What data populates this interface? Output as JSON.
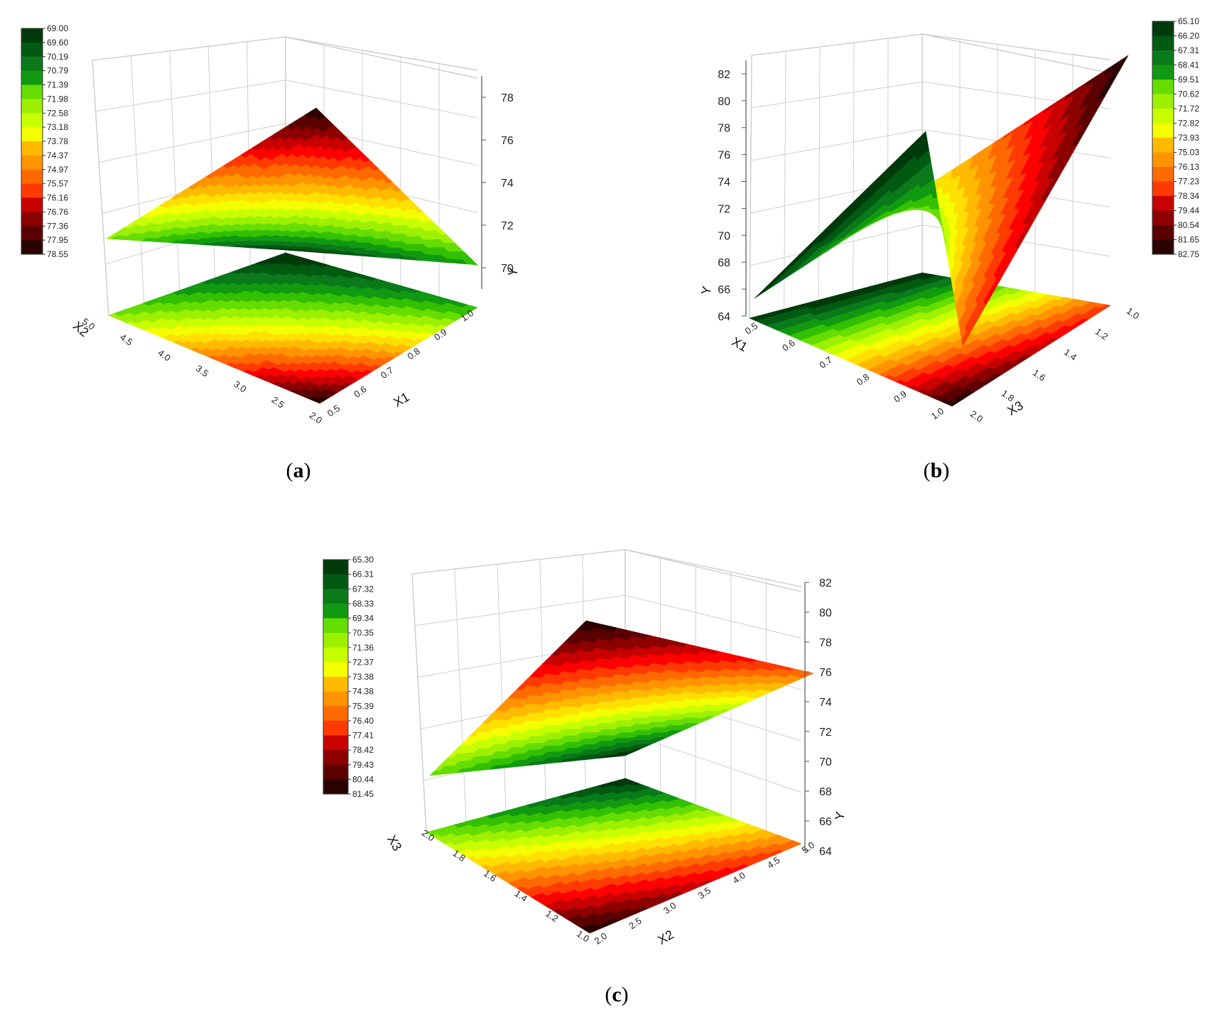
{
  "colors": {
    "ramp": [
      "#2b0000",
      "#5a0000",
      "#8c0000",
      "#c80000",
      "#ff0000",
      "#ff3a00",
      "#ff6a00",
      "#ff9400",
      "#ffba00",
      "#ffe000",
      "#f4ff00",
      "#c8ff00",
      "#9cf000",
      "#66dd00",
      "#33c000",
      "#119a11",
      "#0a7a1a",
      "#005a12",
      "#003a0a"
    ],
    "grid": "#cfcfcf",
    "axis": "#555555"
  },
  "chart_data": [
    {
      "id": "a",
      "type": "surface3d",
      "caption": "(a)",
      "x_axis": {
        "label": "X1",
        "ticks": [
          "0.5",
          "0.6",
          "0.7",
          "0.8",
          "0.9",
          "1.0"
        ],
        "range": [
          0.5,
          1.0
        ]
      },
      "y_axis": {
        "label": "X2",
        "ticks": [
          "2.0",
          "2.5",
          "3.0",
          "3.5",
          "4.0",
          "4.5",
          "5.0"
        ],
        "range": [
          2.0,
          5.0
        ]
      },
      "z_axis": {
        "label": "Y",
        "ticks": [
          "70",
          "72",
          "74",
          "76",
          "78"
        ],
        "range": [
          69,
          79
        ]
      },
      "surface_corners": {
        "x_min_y_min": 78.5,
        "x_max_y_min": 71.0,
        "x_min_y_max": 72.0,
        "x_max_y_max": 69.0
      },
      "contour_projection": true,
      "legend": {
        "placement": "top-left",
        "labels": [
          "69.00",
          "69.60",
          "70.19",
          "70.79",
          "71.39",
          "71.98",
          "72.58",
          "73.18",
          "73.78",
          "74.37",
          "74.97",
          "75.57",
          "76.16",
          "76.76",
          "77.36",
          "77.95",
          "78.55"
        ]
      }
    },
    {
      "id": "b",
      "type": "surface3d",
      "caption": "(b)",
      "x_axis": {
        "label": "X1",
        "ticks": [
          "0.5",
          "0.6",
          "0.7",
          "0.8",
          "0.9",
          "1.0"
        ],
        "range": [
          0.5,
          1.0
        ]
      },
      "y_axis": {
        "label": "X3",
        "ticks": [
          "1.0",
          "1.2",
          "1.4",
          "1.6",
          "1.8",
          "2.0"
        ],
        "range": [
          1.0,
          2.0
        ]
      },
      "z_axis": {
        "label": "Y",
        "ticks": [
          "64",
          "66",
          "68",
          "70",
          "72",
          "74",
          "76",
          "78",
          "80",
          "82"
        ],
        "range": [
          64,
          83
        ]
      },
      "surface_corners": {
        "x_min_y_min": 82.75,
        "x_max_y_min": 77.5,
        "x_min_y_max": 65.5,
        "x_max_y_max": 65.1
      },
      "contour_projection": true,
      "legend": {
        "placement": "top-right",
        "labels": [
          "65.10",
          "66.20",
          "67.31",
          "68.41",
          "69.51",
          "70.62",
          "71.72",
          "72.82",
          "73.93",
          "75.03",
          "76.13",
          "77.23",
          "78.34",
          "79.44",
          "80.54",
          "81.65",
          "82.75"
        ]
      }
    },
    {
      "id": "c",
      "type": "surface3d",
      "caption": "(c)",
      "x_axis": {
        "label": "X2",
        "ticks": [
          "2.0",
          "2.5",
          "3.0",
          "3.5",
          "4.0",
          "4.5",
          "5.0"
        ],
        "range": [
          2.0,
          5.0
        ]
      },
      "y_axis": {
        "label": "X3",
        "ticks": [
          "1.0",
          "1.2",
          "1.4",
          "1.6",
          "1.8",
          "2.0"
        ],
        "range": [
          1.0,
          2.0
        ]
      },
      "z_axis": {
        "label": "Y",
        "ticks": [
          "64",
          "66",
          "68",
          "70",
          "72",
          "74",
          "76",
          "78",
          "80",
          "82"
        ],
        "range": [
          64,
          82
        ]
      },
      "surface_corners": {
        "x_min_y_min": 81.45,
        "x_max_y_min": 76.0,
        "x_min_y_max": 70.0,
        "x_max_y_max": 65.3
      },
      "contour_projection": true,
      "legend": {
        "placement": "top-left",
        "labels": [
          "65.30",
          "66.31",
          "67.32",
          "68.33",
          "69.34",
          "70.35",
          "71.36",
          "72.37",
          "73.38",
          "74.38",
          "75.39",
          "76.40",
          "77.41",
          "78.42",
          "79.43",
          "80.44",
          "81.45"
        ]
      }
    }
  ]
}
